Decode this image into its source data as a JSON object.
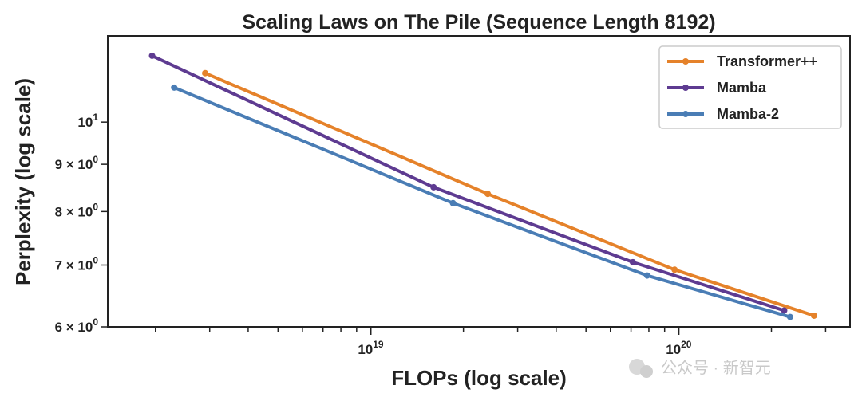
{
  "chart_data": {
    "type": "line",
    "title": "Scaling Laws on The Pile (Sequence Length 8192)",
    "xlabel": "FLOPs (log scale)",
    "ylabel": "Perplexity (log scale)",
    "xscale": "log",
    "yscale": "log",
    "xlim": [
      1.4e+18,
      3.6e+20
    ],
    "ylim": [
      6.0,
      12.4
    ],
    "grid": false,
    "legend_position": "top-right",
    "x_ticks": [
      {
        "value": 1e+19,
        "base": "10",
        "exp": "19"
      },
      {
        "value": 1e+20,
        "base": "10",
        "exp": "20"
      }
    ],
    "y_ticks": [
      {
        "value": 10,
        "base": "10",
        "exp": "1"
      },
      {
        "value": 9,
        "base": "9 × 10",
        "exp": "0"
      },
      {
        "value": 8,
        "base": "8 × 10",
        "exp": "0"
      },
      {
        "value": 7,
        "base": "7 × 10",
        "exp": "0"
      },
      {
        "value": 6,
        "base": "6 × 10",
        "exp": "0"
      }
    ],
    "series": [
      {
        "name": "Transformer++",
        "color": "#e5822a",
        "x": [
          2.9e+18,
          2.4e+19,
          9.7e+19,
          2.75e+20
        ],
        "y": [
          11.3,
          8.36,
          6.92,
          6.17
        ]
      },
      {
        "name": "Mamba",
        "color": "#5e3b91",
        "x": [
          1.95e+18,
          1.6e+19,
          7.1e+19,
          2.2e+20
        ],
        "y": [
          11.8,
          8.5,
          7.05,
          6.25
        ]
      },
      {
        "name": "Mamba-2",
        "color": "#4a7db5",
        "x": [
          2.3e+18,
          1.85e+19,
          7.9e+19,
          2.3e+20
        ],
        "y": [
          10.9,
          8.17,
          6.82,
          6.15
        ]
      }
    ]
  },
  "watermark": {
    "text": "公众号 · 新智元"
  }
}
